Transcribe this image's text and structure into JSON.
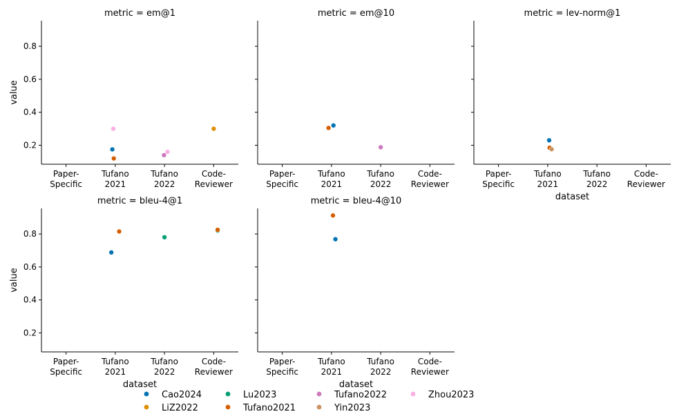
{
  "chart_data": {
    "type": "scatter",
    "xlabel": "dataset",
    "ylabel": "value",
    "ylim": [
      0.085,
      0.955
    ],
    "yticks": [
      0.2,
      0.4,
      0.6,
      0.8
    ],
    "categories": [
      {
        "key": "paper",
        "lines": [
          "Paper-",
          "Specific"
        ]
      },
      {
        "key": "t21",
        "lines": [
          "Tufano",
          "2021"
        ]
      },
      {
        "key": "t22",
        "lines": [
          "Tufano",
          "2022"
        ]
      },
      {
        "key": "cr",
        "lines": [
          "Code-",
          "Reviewer"
        ]
      }
    ],
    "series_colors": {
      "Cao2024": "#0173b2",
      "LiZ2022": "#de8f05",
      "Lu2023": "#029e73",
      "Tufano2021": "#d55e00",
      "Tufano2022": "#cc78bc",
      "Yin2023": "#ca9161",
      "Zhou2023": "#fbafe4"
    },
    "legend": [
      "Cao2024",
      "LiZ2022",
      "Lu2023",
      "Tufano2021",
      "Tufano2022",
      "Yin2023",
      "Zhou2023"
    ],
    "panels": [
      {
        "title": "metric = em@1",
        "points": [
          {
            "series": "Zhou2023",
            "category": 1,
            "jitter": -0.04,
            "value": 0.3
          },
          {
            "series": "Cao2024",
            "category": 1,
            "jitter": -0.06,
            "value": 0.175
          },
          {
            "series": "Tufano2021",
            "category": 1,
            "jitter": -0.03,
            "value": 0.12
          },
          {
            "series": "Tufano2022",
            "category": 2,
            "jitter": -0.01,
            "value": 0.14
          },
          {
            "series": "Zhou2023",
            "category": 2,
            "jitter": 0.06,
            "value": 0.16
          },
          {
            "series": "LiZ2022",
            "category": 3,
            "jitter": 0.0,
            "value": 0.3
          }
        ]
      },
      {
        "title": "metric = em@10",
        "points": [
          {
            "series": "Cao2024",
            "category": 1,
            "jitter": 0.04,
            "value": 0.32
          },
          {
            "series": "Tufano2021",
            "category": 1,
            "jitter": -0.06,
            "value": 0.305
          },
          {
            "series": "Tufano2022",
            "category": 2,
            "jitter": 0.0,
            "value": 0.188
          }
        ]
      },
      {
        "title": "metric = lev-norm@1",
        "points": [
          {
            "series": "Cao2024",
            "category": 1,
            "jitter": 0.03,
            "value": 0.23
          },
          {
            "series": "Tufano2021",
            "category": 1,
            "jitter": 0.04,
            "value": 0.185
          },
          {
            "series": "Yin2023",
            "category": 1,
            "jitter": 0.08,
            "value": 0.176
          }
        ]
      },
      {
        "title": "metric = bleu-4@1",
        "points": [
          {
            "series": "Tufano2021",
            "category": 1,
            "jitter": 0.08,
            "value": 0.815
          },
          {
            "series": "Cao2024",
            "category": 1,
            "jitter": -0.08,
            "value": 0.688
          },
          {
            "series": "Lu2023",
            "category": 2,
            "jitter": 0.0,
            "value": 0.78
          },
          {
            "series": "Lu2023",
            "category": 3,
            "jitter": 0.08,
            "value": 0.82
          },
          {
            "series": "Tufano2021",
            "category": 3,
            "jitter": 0.08,
            "value": 0.825
          }
        ]
      },
      {
        "title": "metric = bleu-4@10",
        "points": [
          {
            "series": "Tufano2021",
            "category": 1,
            "jitter": 0.03,
            "value": 0.912
          },
          {
            "series": "Cao2024",
            "category": 1,
            "jitter": 0.08,
            "value": 0.768
          }
        ]
      }
    ]
  }
}
